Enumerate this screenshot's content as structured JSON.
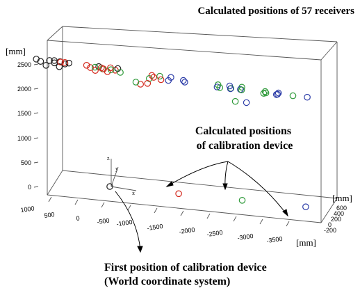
{
  "chart_data": {
    "type": "scatter",
    "projection": "3d",
    "title": "Calculated positions of 57 receivers",
    "units": {
      "z": "[mm]",
      "y": "[mm]",
      "x": "[mm]"
    },
    "z_ticks": [
      "0",
      "500",
      "1000",
      "1500",
      "2000",
      "2500"
    ],
    "x_ticks": [
      "1000",
      "500",
      "0",
      "-500",
      "-1000",
      "-1500",
      "-2000",
      "-2500",
      "-3000",
      "-3500"
    ],
    "y_ticks": [
      "600",
      "400",
      "200",
      "0",
      "-200"
    ],
    "annotations": {
      "calibration": [
        "Calculated positions",
        "of calibration device"
      ],
      "first_position": [
        "First position of calibration device",
        "(World coordinate system)"
      ]
    },
    "origin_axes": {
      "x": "x",
      "y": "y",
      "z": "z"
    },
    "colors": {
      "black": "#222222",
      "red": "#d42a1e",
      "green": "#2f9a3a",
      "blue": "#2e3ea8"
    },
    "receivers": [
      {
        "c": "black",
        "x": 1100,
        "y": 400,
        "z": 2970
      },
      {
        "c": "black",
        "x": 850,
        "y": 400,
        "z": 2970
      },
      {
        "c": "black",
        "x": 650,
        "y": 400,
        "z": 2970
      },
      {
        "c": "black",
        "x": 1090,
        "y": 300,
        "z": 2800
      },
      {
        "c": "black",
        "x": 830,
        "y": 300,
        "z": 2800
      },
      {
        "c": "black",
        "x": 630,
        "y": 300,
        "z": 2800
      },
      {
        "c": "black",
        "x": 1060,
        "y": 200,
        "z": 2600
      },
      {
        "c": "black",
        "x": 810,
        "y": 200,
        "z": 2600
      },
      {
        "c": "red",
        "x": 150,
        "y": 400,
        "z": 2950
      },
      {
        "c": "black",
        "x": -80,
        "y": 400,
        "z": 2950
      },
      {
        "c": "red",
        "x": -300,
        "y": 400,
        "z": 2950
      },
      {
        "c": "red",
        "x": 150,
        "y": 300,
        "z": 2780
      },
      {
        "c": "green",
        "x": -80,
        "y": 300,
        "z": 2780
      },
      {
        "c": "red",
        "x": -320,
        "y": 300,
        "z": 2780
      },
      {
        "c": "red",
        "x": 130,
        "y": 200,
        "z": 2600
      },
      {
        "c": "red",
        "x": -100,
        "y": 200,
        "z": 2600
      },
      {
        "c": "black",
        "x": -440,
        "y": 400,
        "z": 2950
      },
      {
        "c": "red",
        "x": -1010,
        "y": 300,
        "z": 2750
      },
      {
        "c": "green",
        "x": -1160,
        "y": 300,
        "z": 2750
      },
      {
        "c": "blue",
        "x": -1370,
        "y": 300,
        "z": 2750
      },
      {
        "c": "green",
        "x": -890,
        "y": 200,
        "z": 2550
      },
      {
        "c": "red",
        "x": -1110,
        "y": 200,
        "z": 2550
      },
      {
        "c": "blue",
        "x": -1250,
        "y": 200,
        "z": 2550
      },
      {
        "c": "blue",
        "x": -1560,
        "y": 200,
        "z": 2550
      },
      {
        "c": "red",
        "x": -900,
        "y": 100,
        "z": 2450
      },
      {
        "c": "blue",
        "x": -1460,
        "y": 100,
        "z": 2450
      },
      {
        "c": "green",
        "x": -2260,
        "y": 300,
        "z": 2700
      },
      {
        "c": "blue",
        "x": -2480,
        "y": 300,
        "z": 2700
      },
      {
        "c": "green",
        "x": -2710,
        "y": 300,
        "z": 2700
      },
      {
        "c": "blue",
        "x": -2170,
        "y": 200,
        "z": 2520
      },
      {
        "c": "green",
        "x": -2430,
        "y": 200,
        "z": 2520
      },
      {
        "c": "blue",
        "x": -2610,
        "y": 200,
        "z": 2520
      },
      {
        "c": "green",
        "x": -2150,
        "y": 100,
        "z": 2380
      },
      {
        "c": "blue",
        "x": -2350,
        "y": 100,
        "z": 2380
      },
      {
        "c": "green",
        "x": -2560,
        "y": 100,
        "z": 2380
      },
      {
        "c": "green",
        "x": -3150,
        "y": 300,
        "z": 2660
      },
      {
        "c": "blue",
        "x": -3400,
        "y": 300,
        "z": 2660
      },
      {
        "c": "green",
        "x": -3050,
        "y": 200,
        "z": 2490
      },
      {
        "c": "blue",
        "x": -3290,
        "y": 200,
        "z": 2490
      },
      {
        "c": "green",
        "x": -3020,
        "y": 100,
        "z": 2370
      },
      {
        "c": "blue",
        "x": -3240,
        "y": 100,
        "z": 2370
      },
      {
        "c": "green",
        "x": -3530,
        "y": 100,
        "z": 2370
      },
      {
        "c": "blue",
        "x": -3800,
        "y": 100,
        "z": 2370
      },
      {
        "c": "black",
        "x": 1050,
        "y": 0,
        "z": 2450
      },
      {
        "c": "red",
        "x": 1000,
        "y": -100,
        "z": 2300
      },
      {
        "c": "red",
        "x": 920,
        "y": -100,
        "z": 2300
      },
      {
        "c": "black",
        "x": 880,
        "y": -150,
        "z": 2230
      },
      {
        "c": "green",
        "x": 280,
        "y": 0,
        "z": 2400
      },
      {
        "c": "red",
        "x": 160,
        "y": 0,
        "z": 2400
      },
      {
        "c": "red",
        "x": 190,
        "y": -100,
        "z": 2250
      },
      {
        "c": "green",
        "x": 50,
        "y": -100,
        "z": 2250
      },
      {
        "c": "green",
        "x": -90,
        "y": -150,
        "z": 2150
      },
      {
        "c": "red",
        "x": -580,
        "y": 0,
        "z": 2150
      },
      {
        "c": "green",
        "x": -420,
        "y": -100,
        "z": 2050
      },
      {
        "c": "red",
        "x": -640,
        "y": -100,
        "z": 2050
      },
      {
        "c": "green",
        "x": -2370,
        "y": 0,
        "z": 2000
      },
      {
        "c": "blue",
        "x": -2580,
        "y": 0,
        "z": 2000
      }
    ],
    "calibration_points": [
      {
        "c": "black",
        "x": 0,
        "y": 0,
        "z": 0
      },
      {
        "c": "red",
        "x": -1300,
        "y": 0,
        "z": 0
      },
      {
        "c": "green",
        "x": -2500,
        "y": 0,
        "z": 0
      },
      {
        "c": "blue",
        "x": -3700,
        "y": 0,
        "z": 0
      }
    ]
  }
}
